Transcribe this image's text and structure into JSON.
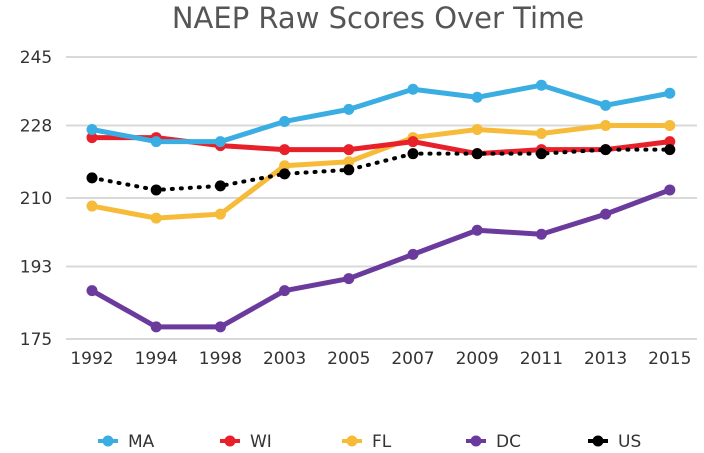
{
  "chart_data": {
    "type": "line",
    "title": "NAEP Raw Scores Over Time",
    "xlabel": "",
    "ylabel": "",
    "categories": [
      "1992",
      "1994",
      "1998",
      "2003",
      "2005",
      "2007",
      "2009",
      "2011",
      "2013",
      "2015"
    ],
    "yticks": [
      "245",
      "228",
      "210",
      "193",
      "175"
    ],
    "ylim": [
      175,
      245
    ],
    "grid": true,
    "legend_position": "bottom",
    "series": [
      {
        "name": "MA",
        "color": "#3aaee3",
        "style": "solid",
        "values": [
          227,
          224,
          224,
          229,
          232,
          237,
          235,
          238,
          233,
          236
        ]
      },
      {
        "name": "WI",
        "color": "#e8202a",
        "style": "solid",
        "values": [
          225,
          225,
          223,
          222,
          222,
          224,
          221,
          222,
          222,
          224
        ]
      },
      {
        "name": "FL",
        "color": "#f7bb3a",
        "style": "solid",
        "values": [
          208,
          205,
          206,
          218,
          219,
          225,
          227,
          226,
          228,
          228
        ]
      },
      {
        "name": "DC",
        "color": "#6a3a9c",
        "style": "solid",
        "values": [
          187,
          178,
          178,
          187,
          190,
          196,
          202,
          201,
          206,
          212
        ]
      },
      {
        "name": "US",
        "color": "#000000",
        "style": "dotted",
        "values": [
          215,
          212,
          213,
          216,
          217,
          221,
          221,
          221,
          222,
          222
        ]
      }
    ]
  }
}
